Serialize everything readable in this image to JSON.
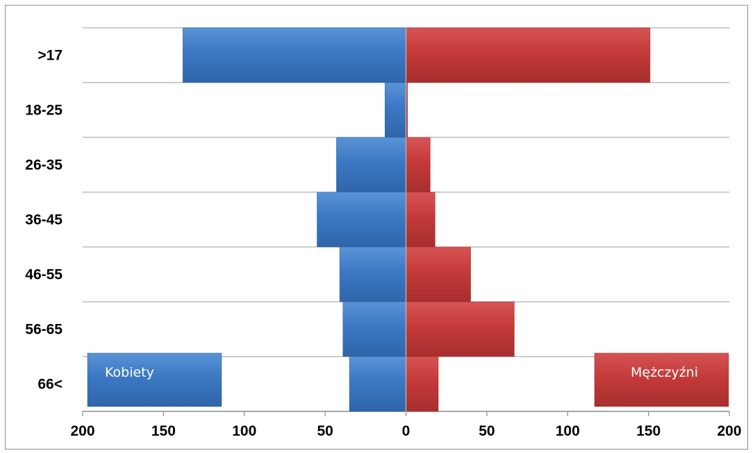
{
  "chart_data": {
    "type": "bar",
    "orientation": "horizontal",
    "subtype": "population-pyramid",
    "categories": [
      ">17",
      "18-25",
      "26-35",
      "36-45",
      "46-55",
      "56-65",
      "66<"
    ],
    "series": [
      {
        "name": "Kobiety",
        "color": "#3b78c4",
        "side": "left",
        "values": [
          138,
          13,
          43,
          55,
          41,
          39,
          35
        ]
      },
      {
        "name": "Mężczyźni",
        "color": "#c43a3a",
        "side": "right",
        "values": [
          151,
          1,
          15,
          18,
          40,
          67,
          20
        ]
      }
    ],
    "xticks": [
      200,
      150,
      100,
      50,
      0,
      50,
      100,
      150,
      200
    ],
    "xlim": [
      -200,
      200
    ],
    "grid": true,
    "legend_placement": "bottom-corners"
  }
}
